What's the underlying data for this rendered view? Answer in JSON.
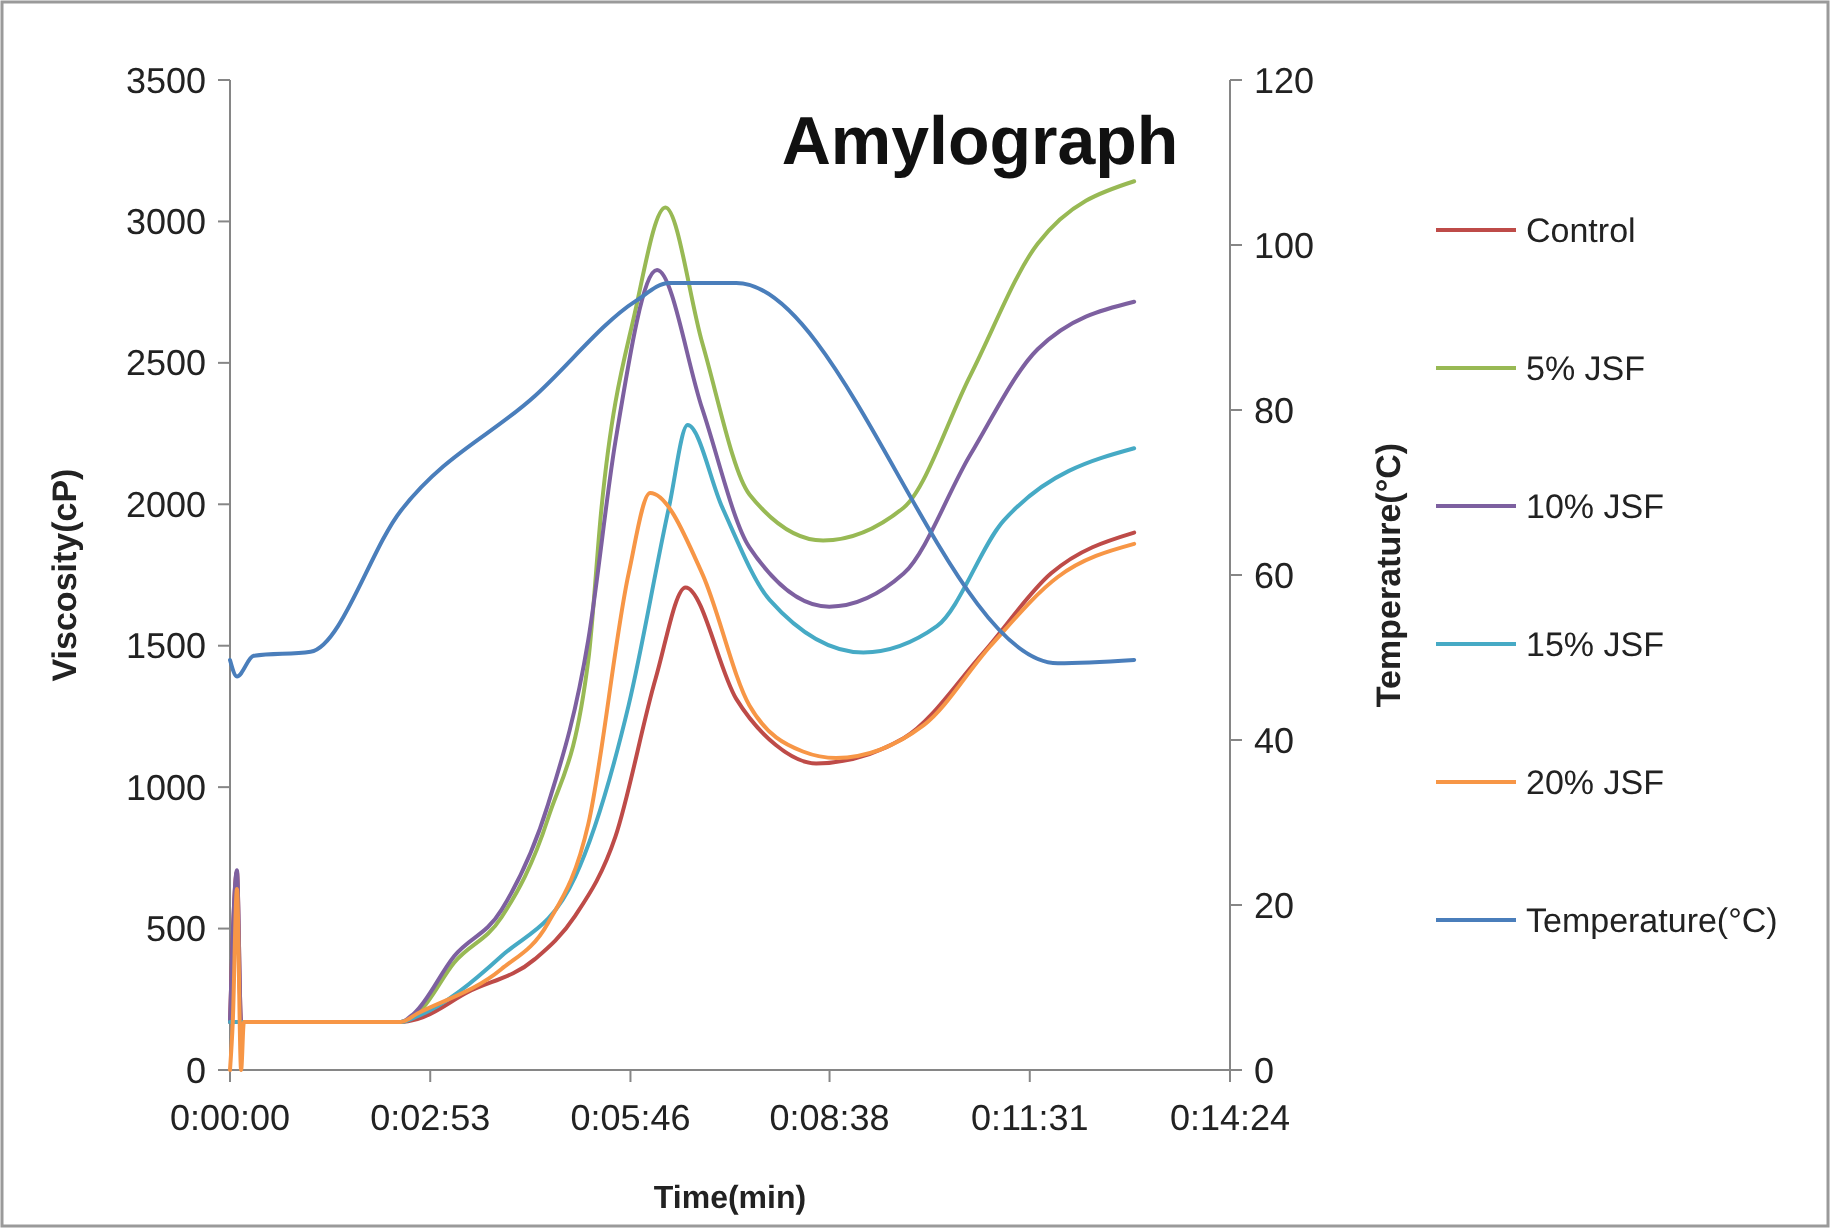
{
  "chart_data": {
    "type": "line",
    "title": "Amylograph",
    "xlabel": "Time(min)",
    "ylabel": "Viscosity(cP)",
    "y2label": "Temperature(°C)",
    "xlim": [
      0,
      14.4
    ],
    "xticks": [
      {
        "value": 0,
        "label": "0:00:00"
      },
      {
        "value": 2.8833,
        "label": "0:02:53"
      },
      {
        "value": 5.7667,
        "label": "0:05:46"
      },
      {
        "value": 8.6333,
        "label": "0:08:38"
      },
      {
        "value": 11.5167,
        "label": "0:11:31"
      },
      {
        "value": 14.4,
        "label": "0:14:24"
      }
    ],
    "ylim": [
      0,
      3500
    ],
    "yticks": [
      0,
      500,
      1000,
      1500,
      2000,
      2500,
      3000,
      3500
    ],
    "y2lim": [
      0,
      120
    ],
    "y2ticks": [
      0,
      20,
      40,
      60,
      80,
      100,
      120
    ],
    "grid": false,
    "legend": "right",
    "marker": "none",
    "line_style": "solid",
    "series": [
      {
        "name": "Control",
        "color": "#be4b48",
        "x": [
          0,
          0.1,
          0.16,
          2.46,
          2.7,
          3.42,
          4.39,
          4.97,
          5.55,
          6.13,
          6.56,
          7.29,
          7.86,
          8.44,
          9.7,
          10.85,
          11.82,
          13.02
        ],
        "values": [
          170,
          700,
          170,
          170,
          180,
          275,
          392,
          545,
          825,
          1385,
          1706,
          1312,
          1149,
          1084,
          1173,
          1476,
          1755,
          1900
        ]
      },
      {
        "name": "5% JSF",
        "color": "#98b954",
        "x": [
          0,
          2.46,
          2.7,
          3.23,
          3.91,
          4.58,
          5.16,
          5.35,
          5.84,
          6.27,
          6.8,
          7.48,
          8.54,
          9.7,
          10.66,
          11.63,
          13.02
        ],
        "values": [
          170,
          170,
          200,
          380,
          540,
          890,
          1450,
          1988,
          2688,
          3049,
          2571,
          2035,
          1872,
          1988,
          2455,
          2921,
          3142
        ]
      },
      {
        "name": "10% JSF",
        "color": "#7d60a0",
        "x": [
          0,
          0.1,
          0.16,
          2.46,
          2.65,
          3.23,
          3.91,
          4.58,
          5.16,
          5.55,
          6.15,
          6.8,
          7.48,
          8.63,
          9.7,
          10.66,
          11.63,
          13.02
        ],
        "values": [
          170,
          706,
          170,
          170,
          200,
          403,
          566,
          939,
          1522,
          2222,
          2828,
          2338,
          1848,
          1638,
          1755,
          2175,
          2548,
          2716
        ]
      },
      {
        "name": "15% JSF",
        "color": "#46aac5",
        "x": [
          0,
          2.46,
          2.7,
          3.91,
          4.97,
          5.74,
          6.32,
          6.59,
          7.09,
          7.77,
          9.12,
          10.18,
          11.14,
          13.02
        ],
        "values": [
          170,
          170,
          190,
          403,
          683,
          1289,
          1988,
          2280,
          1988,
          1662,
          1476,
          1569,
          1942,
          2198
        ]
      },
      {
        "name": "20% JSF",
        "color": "#f79646",
        "x": [
          0,
          0.04,
          0.1,
          0.16,
          0.2,
          2.46,
          2.7,
          3.91,
          4.58,
          5.16,
          5.74,
          6.05,
          6.8,
          7.48,
          8.25,
          8.73,
          9.99,
          10.95,
          11.92,
          13.02
        ],
        "values": [
          0,
          170,
          640,
          0,
          170,
          170,
          200,
          357,
          520,
          870,
          1755,
          2040,
          1755,
          1289,
          1126,
          1103,
          1219,
          1499,
          1743,
          1860
        ]
      },
      {
        "name": "Temperature(°C)",
        "color": "#4a7ebb",
        "axis": "y2",
        "x": [
          0,
          0.1,
          0.34,
          1.16,
          2.46,
          4.39,
          5.84,
          6.32,
          7.29,
          11.92,
          13.02
        ],
        "values": [
          49.7,
          47.7,
          50.2,
          50.7,
          67.8,
          81.7,
          93.2,
          95.4,
          95.4,
          49.3,
          49.7
        ]
      }
    ]
  }
}
